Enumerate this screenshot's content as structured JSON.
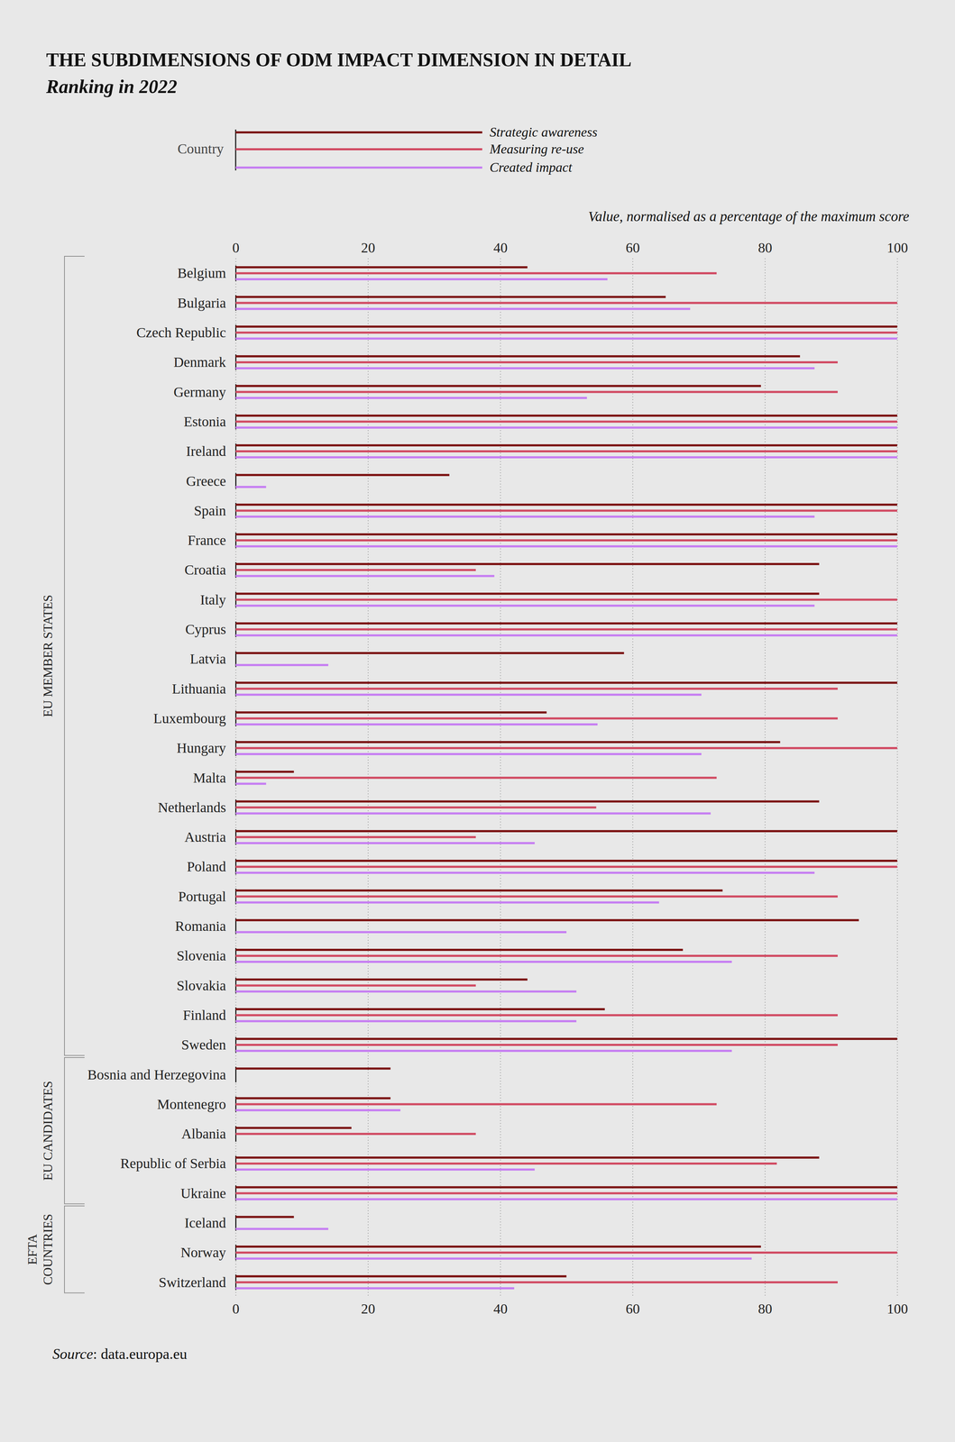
{
  "chart_data": {
    "type": "bar",
    "title": "THE SUBDIMENSIONS OF ODM IMPACT DIMENSION IN DETAIL",
    "subtitle": "Ranking in 2022",
    "x_label": "Value, normalised as a percentage of the maximum score",
    "legend_title": "Country",
    "source": "Source: data.europa.eu",
    "orientation": "horizontal",
    "grid": true,
    "legend": "top-left",
    "xlim": [
      0,
      100
    ],
    "xticks": [
      0,
      20,
      40,
      60,
      80,
      100
    ],
    "categories": [
      "Belgium",
      "Bulgaria",
      "Czech Republic",
      "Denmark",
      "Germany",
      "Estonia",
      "Ireland",
      "Greece",
      "Spain",
      "France",
      "Croatia",
      "Italy",
      "Cyprus",
      "Latvia",
      "Lithuania",
      "Luxembourg",
      "Hungary",
      "Malta",
      "Netherlands",
      "Austria",
      "Poland",
      "Portugal",
      "Romania",
      "Slovenia",
      "Slovakia",
      "Finland",
      "Sweden",
      "Bosnia and Herzegovina",
      "Montenegro",
      "Albania",
      "Republic of Serbia",
      "Ukraine",
      "Iceland",
      "Norway",
      "Switzerland"
    ],
    "groups": [
      {
        "name": "EU MEMBER STATES",
        "first": "Belgium",
        "last": "Sweden"
      },
      {
        "name": "EU CANDIDATES",
        "first": "Bosnia and Herzegovina",
        "last": "Ukraine"
      },
      {
        "name": "EFTA COUNTRIES",
        "first": "Iceland",
        "last": "Switzerland"
      }
    ],
    "series": [
      {
        "name": "Strategic awareness",
        "color": "#7b1010",
        "values": [
          44.1,
          65,
          100,
          85.3,
          79.4,
          100,
          100,
          32.3,
          100,
          100,
          88.2,
          88.2,
          100,
          58.7,
          100,
          47,
          82.3,
          8.8,
          88.2,
          100,
          100,
          73.6,
          94.2,
          67.6,
          44.1,
          55.8,
          100,
          23.4,
          23.4,
          17.5,
          88.2,
          100,
          8.8,
          79.4,
          50
        ]
      },
      {
        "name": "Measuring re-use",
        "color": "#d14b63",
        "values": [
          72.7,
          100,
          100,
          91,
          91,
          100,
          100,
          0,
          100,
          100,
          36.3,
          100,
          100,
          0,
          91,
          91,
          100,
          72.7,
          54.5,
          36.3,
          100,
          91,
          0,
          91,
          36.3,
          91,
          91,
          0,
          72.7,
          36.3,
          81.8,
          100,
          0,
          100,
          91
        ]
      },
      {
        "name": "Created impact",
        "color": "#c67ef2",
        "values": [
          56.2,
          68.7,
          100,
          87.5,
          53.1,
          100,
          100,
          4.6,
          87.5,
          100,
          39.1,
          87.5,
          100,
          14,
          70.4,
          54.7,
          70.4,
          4.6,
          71.8,
          45.2,
          87.5,
          64,
          50,
          75,
          51.5,
          51.5,
          75,
          0,
          24.9,
          0,
          45.2,
          100,
          14,
          78,
          42.1
        ]
      }
    ]
  }
}
